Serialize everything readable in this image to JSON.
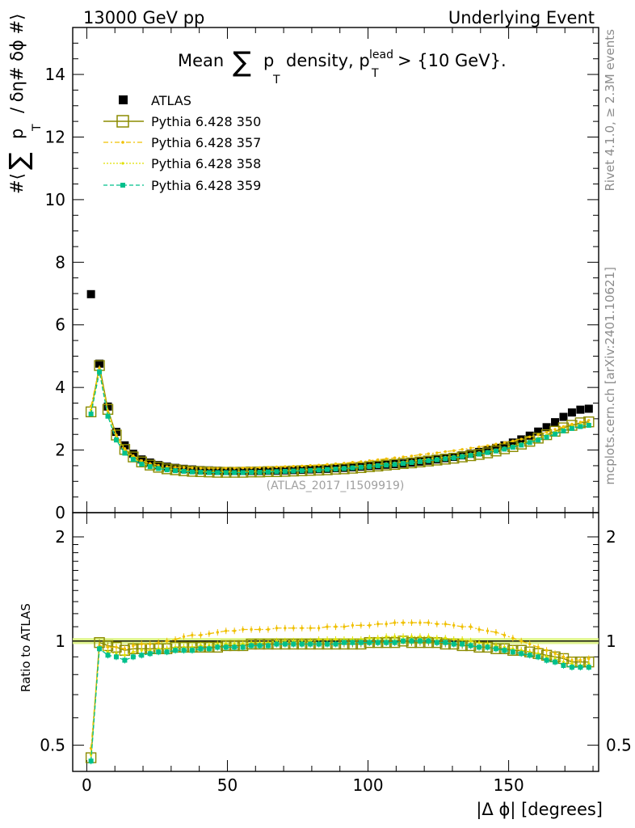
{
  "header": {
    "left": "13000 GeV pp",
    "right": "Underlying Event"
  },
  "side_labels": {
    "rivet": "Rivet 4.1.0, ≥ 2.3M events",
    "mcplots": "mcplots.cern.ch [arXiv:2401.10621]"
  },
  "chart_data": [
    {
      "type": "scatter",
      "panel": "main",
      "title_parts": {
        "mean": "Mean",
        "sum": "∑",
        "p": "p",
        "t": "T",
        "density": "density, p",
        "lead": "lead",
        "t2": "T",
        "cut": "> {10 GeV}."
      },
      "ylabel_parts": {
        "open": "#⟨",
        "sum": "∑",
        "p": "p",
        "t": "T",
        "rest": "/ δη# δϕ #⟩"
      },
      "watermark": "(ATLAS_2017_I1509919)",
      "xlabel": "|Δ ϕ| [degrees]",
      "xlim": [
        -5,
        182
      ],
      "ylim": [
        0,
        15.5
      ],
      "x_ticks": [
        0,
        50,
        100,
        150
      ],
      "y_ticks": [
        0,
        2,
        4,
        6,
        8,
        10,
        12,
        14
      ],
      "x_tick_labels": [
        "0",
        "50",
        "100",
        "150"
      ],
      "y_tick_labels": [
        "0",
        "2",
        "4",
        "6",
        "8",
        "10",
        "12",
        "14"
      ],
      "legend": [
        "ATLAS",
        "Pythia 6.428 350",
        "Pythia 6.428 357",
        "Pythia 6.428 358",
        "Pythia 6.428 359"
      ],
      "x": [
        1.5,
        4.5,
        7.5,
        10.5,
        13.5,
        16.5,
        19.5,
        22.5,
        25.5,
        28.5,
        31.5,
        34.5,
        37.5,
        40.5,
        43.5,
        46.5,
        49.5,
        52.5,
        55.5,
        58.5,
        61.5,
        64.5,
        67.5,
        70.5,
        73.5,
        76.5,
        79.5,
        82.5,
        85.5,
        88.5,
        91.5,
        94.5,
        97.5,
        100.5,
        103.5,
        106.5,
        109.5,
        112.5,
        115.5,
        118.5,
        121.5,
        124.5,
        127.5,
        130.5,
        133.5,
        136.5,
        139.5,
        142.5,
        145.5,
        148.5,
        151.5,
        154.5,
        157.5,
        160.5,
        163.5,
        166.5,
        169.5,
        172.5,
        175.5,
        178.5
      ],
      "series": [
        {
          "name": "ATLAS",
          "color": "#000000",
          "marker": "filled-square",
          "values": [
            6.98,
            4.76,
            3.39,
            2.58,
            2.15,
            1.88,
            1.7,
            1.6,
            1.52,
            1.47,
            1.43,
            1.4,
            1.38,
            1.36,
            1.35,
            1.34,
            1.33,
            1.33,
            1.33,
            1.33,
            1.33,
            1.34,
            1.34,
            1.35,
            1.36,
            1.37,
            1.38,
            1.39,
            1.4,
            1.42,
            1.43,
            1.45,
            1.47,
            1.49,
            1.51,
            1.53,
            1.55,
            1.57,
            1.6,
            1.63,
            1.66,
            1.7,
            1.74,
            1.78,
            1.83,
            1.88,
            1.94,
            2.0,
            2.07,
            2.15,
            2.24,
            2.34,
            2.46,
            2.59,
            2.73,
            2.89,
            3.06,
            3.2,
            3.29,
            3.32
          ]
        },
        {
          "name": "Pythia 6.428 350",
          "color": "#8b8b00",
          "marker": "open-square",
          "values": [
            3.22,
            4.7,
            3.3,
            2.48,
            2.02,
            1.78,
            1.62,
            1.52,
            1.45,
            1.4,
            1.37,
            1.34,
            1.32,
            1.31,
            1.3,
            1.29,
            1.29,
            1.29,
            1.29,
            1.3,
            1.3,
            1.31,
            1.31,
            1.32,
            1.33,
            1.34,
            1.35,
            1.36,
            1.37,
            1.39,
            1.4,
            1.42,
            1.44,
            1.47,
            1.49,
            1.52,
            1.54,
            1.57,
            1.59,
            1.62,
            1.65,
            1.68,
            1.71,
            1.74,
            1.78,
            1.82,
            1.86,
            1.91,
            1.97,
            2.04,
            2.11,
            2.19,
            2.28,
            2.38,
            2.49,
            2.6,
            2.71,
            2.79,
            2.87,
            2.9
          ]
        },
        {
          "name": "Pythia 6.428 357",
          "color": "#f0c000",
          "marker": "dash-dot",
          "values": [
            3.4,
            4.62,
            3.25,
            2.48,
            2.05,
            1.82,
            1.66,
            1.57,
            1.51,
            1.47,
            1.45,
            1.44,
            1.43,
            1.42,
            1.42,
            1.42,
            1.42,
            1.42,
            1.43,
            1.43,
            1.44,
            1.45,
            1.46,
            1.47,
            1.48,
            1.49,
            1.51,
            1.52,
            1.54,
            1.56,
            1.58,
            1.61,
            1.63,
            1.66,
            1.69,
            1.72,
            1.75,
            1.78,
            1.81,
            1.85,
            1.88,
            1.91,
            1.95,
            1.98,
            2.02,
            2.06,
            2.1,
            2.14,
            2.19,
            2.24,
            2.29,
            2.35,
            2.42,
            2.49,
            2.57,
            2.66,
            2.75,
            2.83,
            2.89,
            2.95
          ]
        },
        {
          "name": "Pythia 6.428 358",
          "color": "#e0e000",
          "marker": "dotted",
          "values": [
            3.28,
            4.52,
            3.15,
            2.38,
            1.96,
            1.74,
            1.59,
            1.5,
            1.44,
            1.4,
            1.37,
            1.35,
            1.33,
            1.32,
            1.31,
            1.31,
            1.31,
            1.31,
            1.31,
            1.32,
            1.32,
            1.33,
            1.34,
            1.35,
            1.36,
            1.37,
            1.38,
            1.4,
            1.41,
            1.43,
            1.45,
            1.47,
            1.49,
            1.52,
            1.54,
            1.57,
            1.59,
            1.62,
            1.65,
            1.68,
            1.71,
            1.74,
            1.77,
            1.8,
            1.84,
            1.88,
            1.92,
            1.96,
            2.01,
            2.07,
            2.14,
            2.21,
            2.29,
            2.38,
            2.47,
            2.57,
            2.67,
            2.75,
            2.81,
            2.85
          ]
        },
        {
          "name": "Pythia 6.428 359",
          "color": "#00c08c",
          "marker": "dashed-filled-square",
          "values": [
            3.15,
            4.5,
            3.08,
            2.32,
            1.9,
            1.7,
            1.55,
            1.47,
            1.41,
            1.37,
            1.34,
            1.32,
            1.3,
            1.29,
            1.28,
            1.28,
            1.28,
            1.28,
            1.28,
            1.29,
            1.29,
            1.3,
            1.31,
            1.32,
            1.33,
            1.34,
            1.35,
            1.36,
            1.38,
            1.39,
            1.41,
            1.43,
            1.45,
            1.47,
            1.5,
            1.52,
            1.54,
            1.57,
            1.6,
            1.63,
            1.66,
            1.69,
            1.72,
            1.75,
            1.79,
            1.83,
            1.87,
            1.92,
            1.97,
            2.03,
            2.09,
            2.16,
            2.24,
            2.32,
            2.41,
            2.51,
            2.61,
            2.69,
            2.75,
            2.79
          ]
        }
      ]
    },
    {
      "type": "scatter",
      "panel": "ratio",
      "ylabel": "Ratio to ATLAS",
      "ylim": [
        0.42,
        2.35
      ],
      "y_scale": "log",
      "y_ticks": [
        0.5,
        1,
        2
      ],
      "y_tick_labels": [
        "0.5",
        "1",
        "2"
      ],
      "reference_band": [
        0.98,
        1.02
      ],
      "series": [
        {
          "name": "Pythia 6.428 350",
          "values": [
            0.46,
            0.99,
            0.97,
            0.96,
            0.94,
            0.95,
            0.95,
            0.95,
            0.95,
            0.95,
            0.96,
            0.96,
            0.96,
            0.96,
            0.96,
            0.96,
            0.97,
            0.97,
            0.97,
            0.98,
            0.98,
            0.98,
            0.98,
            0.98,
            0.98,
            0.98,
            0.98,
            0.98,
            0.98,
            0.98,
            0.98,
            0.98,
            0.98,
            0.99,
            0.99,
            0.99,
            0.99,
            1.0,
            0.99,
            0.99,
            0.99,
            0.99,
            0.98,
            0.98,
            0.97,
            0.97,
            0.96,
            0.96,
            0.95,
            0.95,
            0.94,
            0.94,
            0.93,
            0.92,
            0.91,
            0.9,
            0.89,
            0.87,
            0.87,
            0.87
          ]
        },
        {
          "name": "Pythia 6.428 357",
          "values": [
            0.49,
            0.97,
            0.96,
            0.96,
            0.95,
            0.97,
            0.98,
            0.98,
            0.99,
            1.0,
            1.01,
            1.03,
            1.04,
            1.04,
            1.05,
            1.06,
            1.07,
            1.07,
            1.08,
            1.08,
            1.08,
            1.08,
            1.09,
            1.09,
            1.09,
            1.09,
            1.09,
            1.09,
            1.1,
            1.1,
            1.1,
            1.11,
            1.11,
            1.11,
            1.12,
            1.12,
            1.13,
            1.13,
            1.13,
            1.13,
            1.13,
            1.12,
            1.12,
            1.11,
            1.1,
            1.1,
            1.08,
            1.07,
            1.06,
            1.04,
            1.02,
            1.0,
            0.98,
            0.96,
            0.94,
            0.92,
            0.9,
            0.88,
            0.88,
            0.89
          ]
        },
        {
          "name": "Pythia 6.428 358",
          "values": [
            0.47,
            0.95,
            0.93,
            0.92,
            0.91,
            0.93,
            0.94,
            0.94,
            0.95,
            0.95,
            0.96,
            0.96,
            0.96,
            0.97,
            0.97,
            0.98,
            0.98,
            0.98,
            0.98,
            0.99,
            0.99,
            0.99,
            1.0,
            1.0,
            1.0,
            1.0,
            1.0,
            1.01,
            1.01,
            1.01,
            1.01,
            1.01,
            1.01,
            1.02,
            1.02,
            1.03,
            1.03,
            1.03,
            1.03,
            1.03,
            1.03,
            1.02,
            1.02,
            1.01,
            1.01,
            1.0,
            0.99,
            0.98,
            0.97,
            0.96,
            0.95,
            0.94,
            0.93,
            0.92,
            0.9,
            0.89,
            0.87,
            0.86,
            0.85,
            0.86
          ]
        },
        {
          "name": "Pythia 6.428 359",
          "values": [
            0.45,
            0.95,
            0.91,
            0.9,
            0.88,
            0.9,
            0.91,
            0.92,
            0.93,
            0.93,
            0.94,
            0.94,
            0.94,
            0.95,
            0.95,
            0.96,
            0.96,
            0.96,
            0.96,
            0.97,
            0.97,
            0.97,
            0.98,
            0.98,
            0.98,
            0.98,
            0.98,
            0.98,
            0.98,
            0.98,
            0.99,
            0.99,
            0.99,
            0.99,
            0.99,
            0.99,
            0.99,
            1.0,
            1.0,
            1.0,
            1.0,
            0.99,
            0.99,
            0.98,
            0.98,
            0.97,
            0.96,
            0.96,
            0.95,
            0.94,
            0.93,
            0.92,
            0.91,
            0.9,
            0.88,
            0.87,
            0.85,
            0.84,
            0.84,
            0.84
          ]
        }
      ]
    }
  ]
}
